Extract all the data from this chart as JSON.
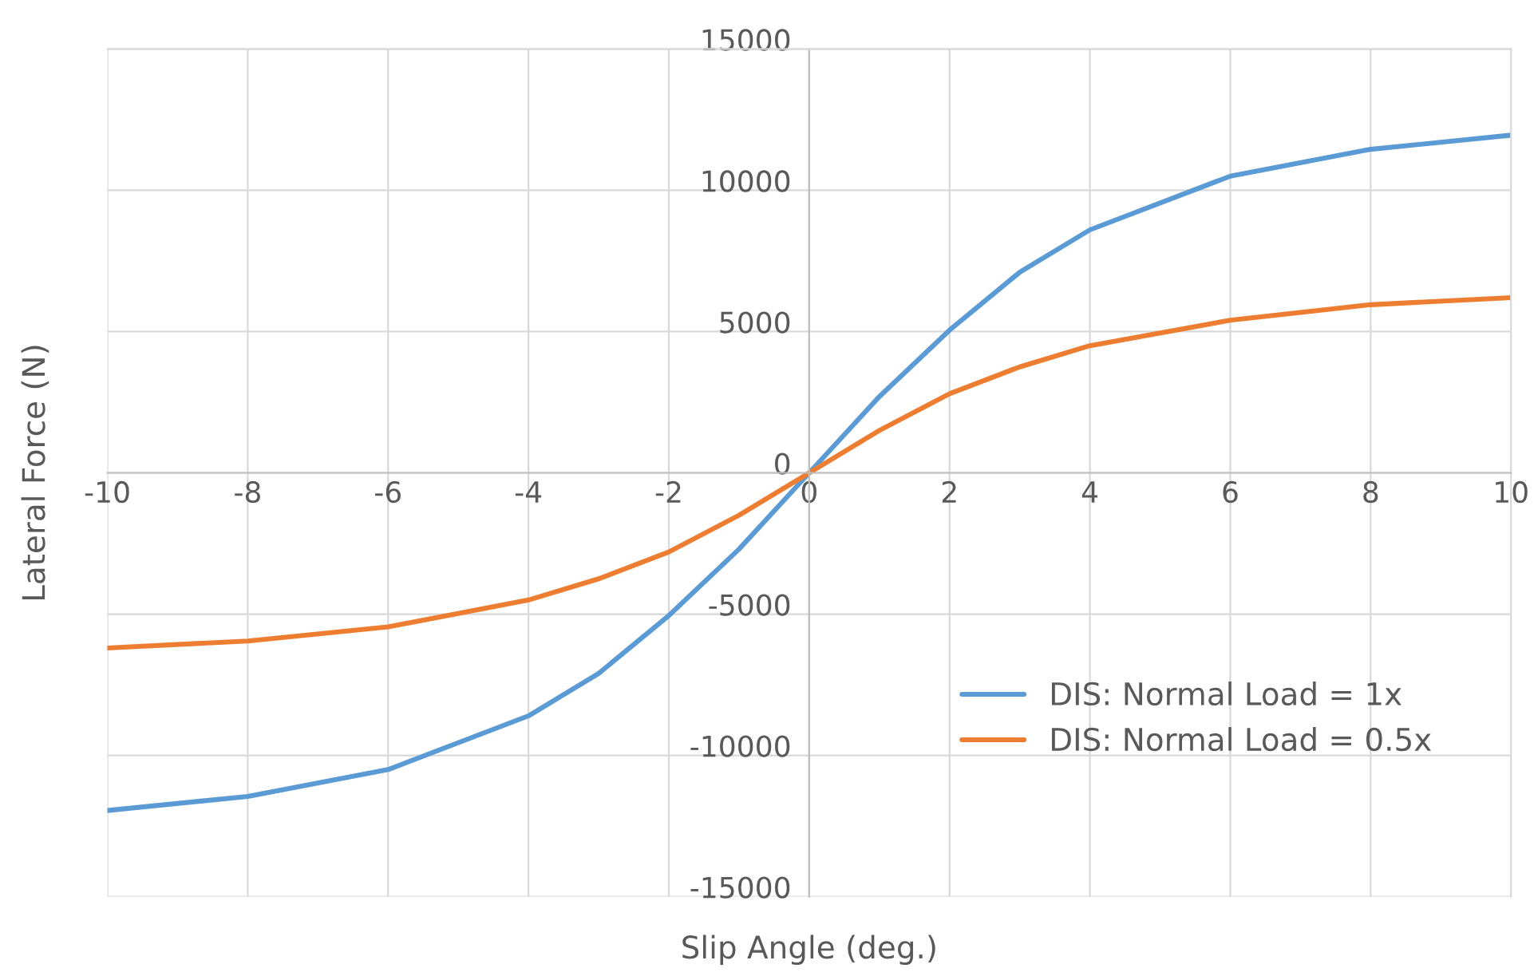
{
  "chart_data": {
    "type": "line",
    "xlabel": "Slip Angle (deg.)",
    "ylabel": "Lateral Force (N)",
    "x": [
      -10,
      -8,
      -6,
      -4,
      -3,
      -2,
      -1,
      0,
      1,
      2,
      3,
      4,
      6,
      8,
      10
    ],
    "series": [
      {
        "name": "DIS: Normal Load = 1x",
        "color": "#5b9bd5",
        "values": [
          -11950,
          -11450,
          -10500,
          -8600,
          -7100,
          -5050,
          -2700,
          0,
          2700,
          5050,
          7100,
          8600,
          10500,
          11450,
          11950
        ]
      },
      {
        "name": "DIS: Normal Load = 0.5x",
        "color": "#ed7d31",
        "values": [
          -6200,
          -5950,
          -5450,
          -4500,
          -3750,
          -2800,
          -1500,
          0,
          1500,
          2800,
          3750,
          4500,
          5400,
          5950,
          6200
        ]
      }
    ],
    "xlim": [
      -10,
      10
    ],
    "xticks": [
      -10,
      -8,
      -6,
      -4,
      -2,
      0,
      2,
      4,
      6,
      8,
      10
    ],
    "ylim": [
      -15000,
      15000
    ],
    "yticks": [
      -15000,
      -10000,
      -5000,
      0,
      5000,
      10000,
      15000
    ],
    "grid": true,
    "legend": "bottom right",
    "marker": "none",
    "line_style": "solid"
  }
}
